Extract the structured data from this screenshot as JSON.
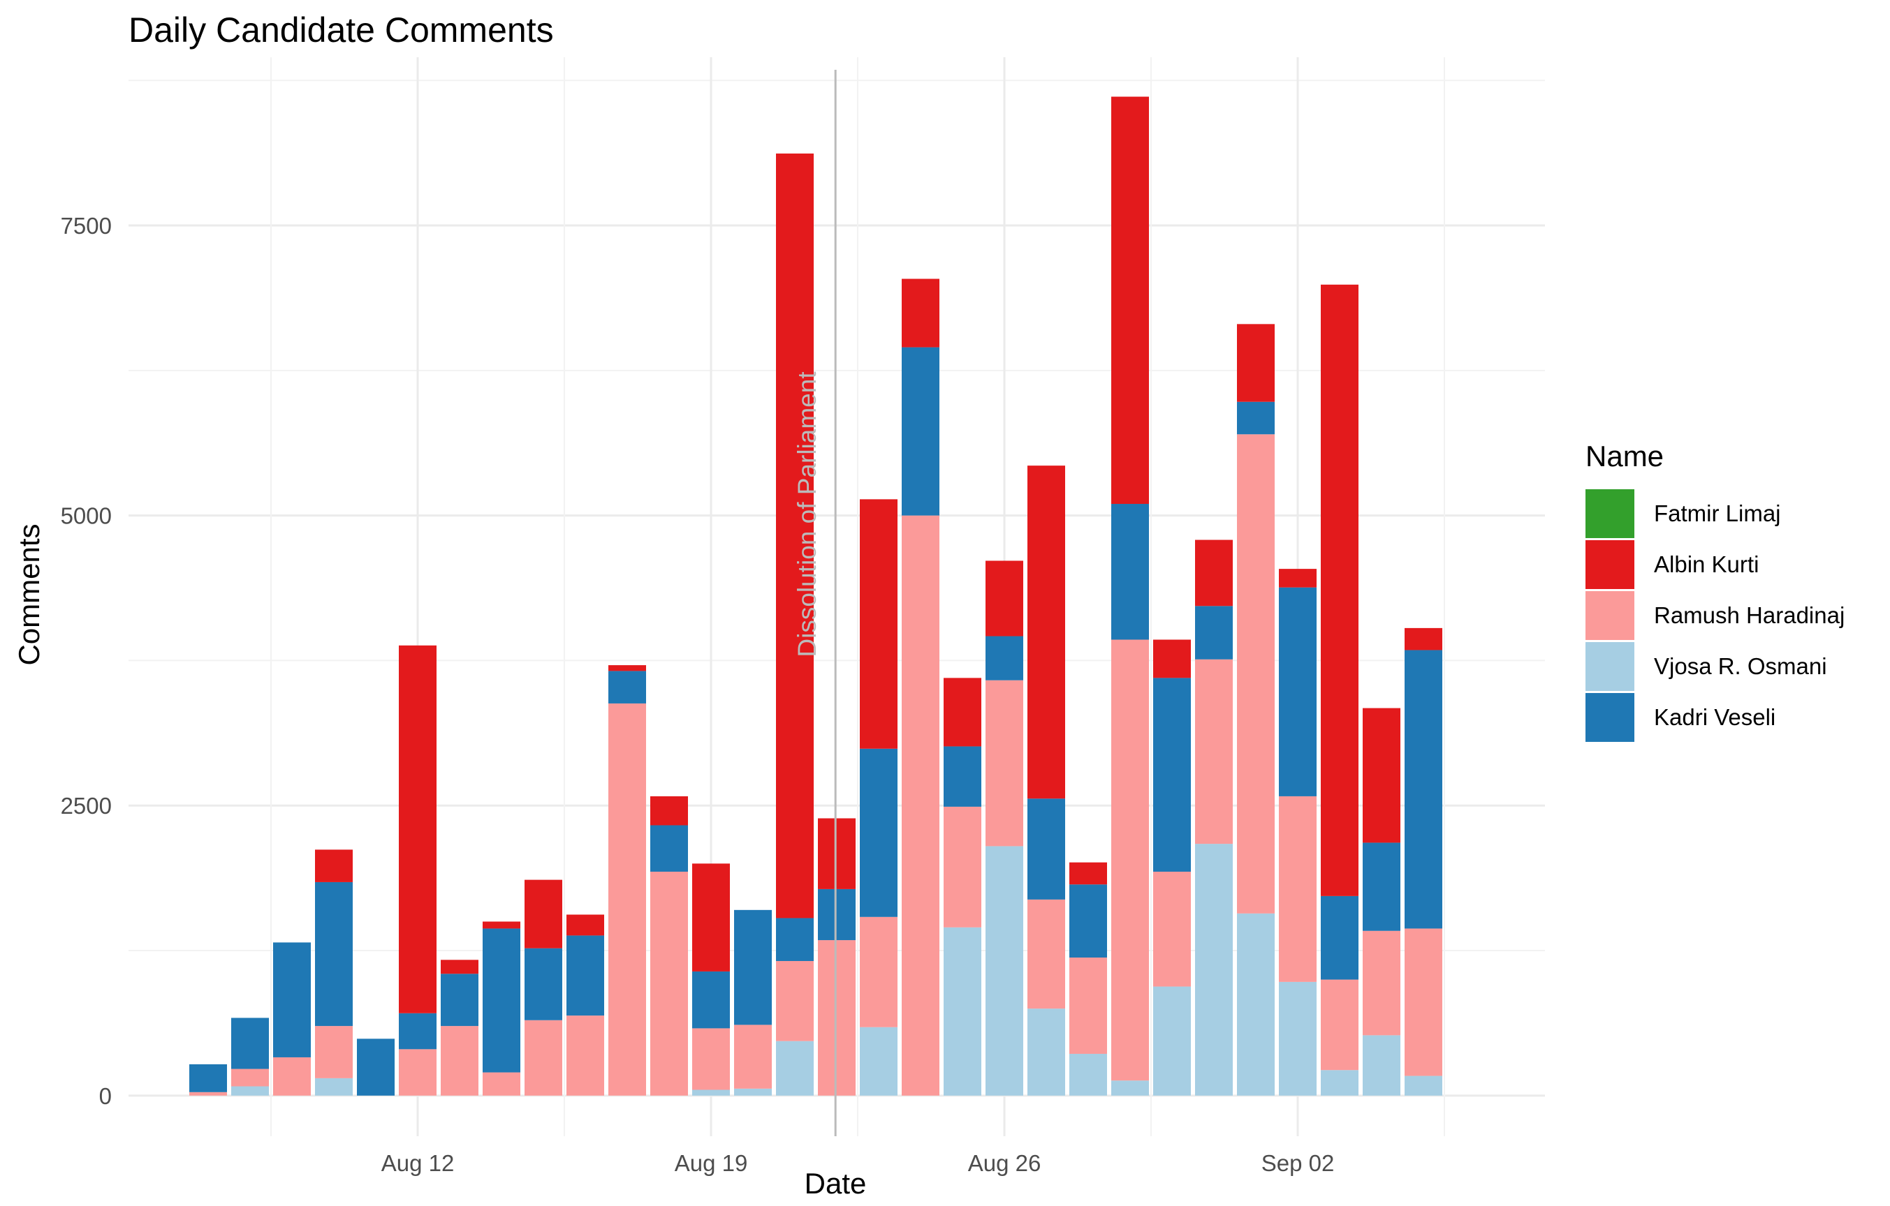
{
  "chart_data": {
    "type": "bar",
    "stacked": true,
    "title": "Daily Candidate Comments",
    "xlabel": "Date",
    "ylabel": "Comments",
    "ylim": [
      -350,
      8950
    ],
    "y_ticks": [
      0,
      2500,
      5000,
      7500
    ],
    "x_ticks": [
      {
        "date": "2019-08-12",
        "label": "Aug 12"
      },
      {
        "date": "2019-08-19",
        "label": "Aug 19"
      },
      {
        "date": "2019-08-26",
        "label": "Aug 26"
      },
      {
        "date": "2019-09-02",
        "label": "Sep 02"
      }
    ],
    "grid": true,
    "legend_title": "Name",
    "legend_position": "right",
    "annotation": {
      "date": "2019-08-22",
      "label": "Dissolution of Parliament",
      "color": "#bbbbbb"
    },
    "dates": [
      "2019-08-07",
      "2019-08-08",
      "2019-08-09",
      "2019-08-10",
      "2019-08-11",
      "2019-08-12",
      "2019-08-13",
      "2019-08-14",
      "2019-08-15",
      "2019-08-16",
      "2019-08-17",
      "2019-08-18",
      "2019-08-19",
      "2019-08-20",
      "2019-08-21",
      "2019-08-22",
      "2019-08-23",
      "2019-08-24",
      "2019-08-25",
      "2019-08-26",
      "2019-08-27",
      "2019-08-28",
      "2019-08-29",
      "2019-08-30",
      "2019-08-31",
      "2019-09-01",
      "2019-09-02",
      "2019-09-03",
      "2019-09-04",
      "2019-09-05",
      "2019-09-06"
    ],
    "series": [
      {
        "name": "Vjosa R. Osmani",
        "color": "#a6cee3",
        "values": [
          0,
          80,
          0,
          150,
          0,
          0,
          0,
          0,
          0,
          0,
          0,
          0,
          50,
          60,
          470,
          0,
          590,
          0,
          1450,
          2150,
          750,
          360,
          130,
          940,
          2170,
          1570,
          980,
          220,
          520,
          170,
          0
        ]
      },
      {
        "name": "Ramush Haradinaj",
        "color": "#fb9a99",
        "values": [
          30,
          150,
          330,
          450,
          0,
          400,
          600,
          200,
          650,
          690,
          3380,
          1930,
          530,
          550,
          690,
          1340,
          950,
          5000,
          1040,
          1430,
          940,
          830,
          3800,
          990,
          1590,
          4130,
          1600,
          780,
          900,
          1270,
          0
        ]
      },
      {
        "name": "Kadri Veseli",
        "color": "#1f78b4",
        "values": [
          240,
          440,
          990,
          1240,
          490,
          310,
          450,
          1240,
          620,
          690,
          280,
          400,
          490,
          990,
          370,
          440,
          1450,
          1450,
          520,
          380,
          870,
          630,
          1170,
          1670,
          460,
          280,
          1800,
          720,
          760,
          2400,
          0
        ]
      },
      {
        "name": "Albin Kurti",
        "color": "#e31a1c",
        "values": [
          0,
          0,
          0,
          280,
          0,
          3170,
          120,
          60,
          590,
          180,
          50,
          250,
          930,
          0,
          6590,
          610,
          2150,
          590,
          590,
          650,
          2870,
          190,
          3510,
          330,
          570,
          670,
          160,
          5270,
          1160,
          190,
          0
        ]
      },
      {
        "name": "Fatmir Limaj",
        "color": "#33a02c",
        "values": [
          0,
          0,
          0,
          0,
          0,
          0,
          0,
          0,
          0,
          0,
          0,
          0,
          0,
          0,
          0,
          0,
          0,
          0,
          0,
          0,
          0,
          0,
          0,
          0,
          0,
          0,
          0,
          0,
          0,
          0,
          0
        ]
      }
    ],
    "legend_order": [
      "Fatmir Limaj",
      "Albin Kurti",
      "Ramush Haradinaj",
      "Vjosa R. Osmani",
      "Kadri Veseli"
    ]
  }
}
